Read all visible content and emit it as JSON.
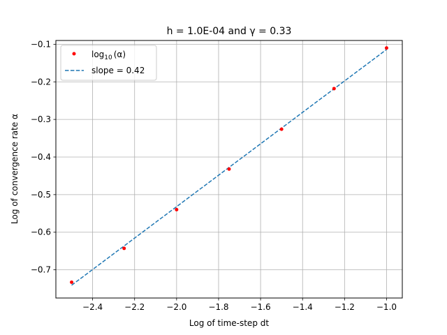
{
  "chart_data": {
    "type": "scatter",
    "title": "h = 1.0E-04 and γ = 0.33",
    "xlabel": "Log of time-step dt",
    "ylabel": "Log of convergence rate α",
    "xlim": [
      -2.575,
      -0.925
    ],
    "ylim": [
      -0.775,
      -0.09
    ],
    "xticks": [
      -2.4,
      -2.2,
      -2.0,
      -1.8,
      -1.6,
      -1.4,
      -1.2,
      -1.0
    ],
    "yticks": [
      -0.7,
      -0.6,
      -0.5,
      -0.4,
      -0.3,
      -0.2,
      -0.1
    ],
    "grid": true,
    "legend_position": "top-left",
    "series": [
      {
        "name": "log10(α)",
        "label_base": "log",
        "label_sub": "10",
        "label_arg": "(α)",
        "kind": "points",
        "color": "#ff0000",
        "x": [
          -2.5,
          -2.25,
          -2.0,
          -1.75,
          -1.5,
          -1.25,
          -1.0
        ],
        "y": [
          -0.733,
          -0.643,
          -0.54,
          -0.432,
          -0.326,
          -0.218,
          -0.11
        ]
      },
      {
        "name": "slope = 0.42",
        "kind": "dashed-line",
        "color": "#1f77b4",
        "x": [
          -2.5,
          -1.0
        ],
        "y": [
          -0.741,
          -0.114
        ]
      }
    ]
  }
}
